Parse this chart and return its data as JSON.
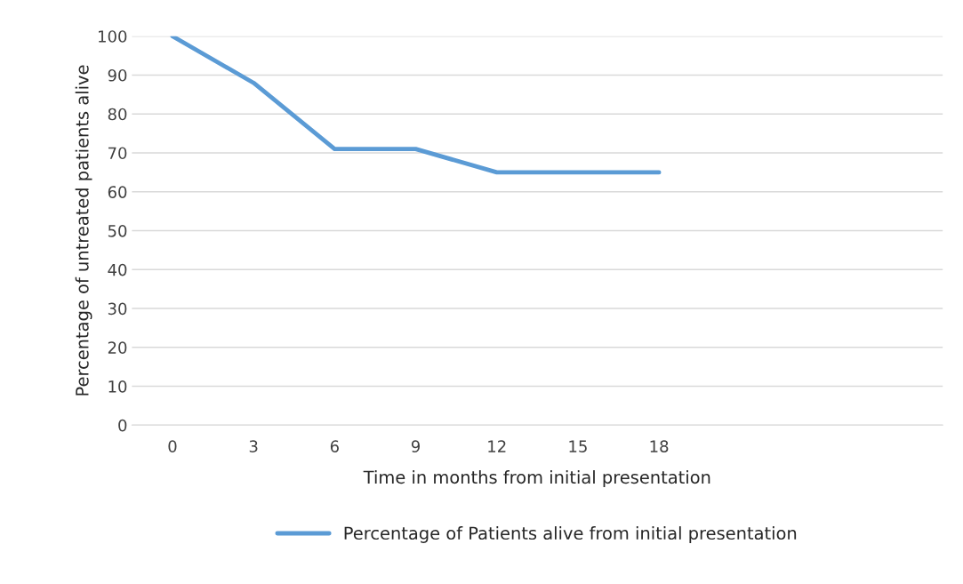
{
  "chart_data": {
    "type": "line",
    "xlabel": "Time in months from initial presentation",
    "ylabel": "Percentage of untreated patients alive",
    "categories": [
      "0",
      "3",
      "6",
      "9",
      "12",
      "15",
      "18",
      null,
      null,
      null
    ],
    "series": [
      {
        "name": "Percentage of Patients alive from initial presentation",
        "color": "#5b9bd5",
        "values": [
          100,
          88,
          71,
          71,
          65,
          65,
          65,
          null,
          null,
          null
        ]
      }
    ],
    "ylim": [
      0,
      100
    ],
    "yticks": [
      0,
      10,
      20,
      30,
      40,
      50,
      60,
      70,
      80,
      90,
      100
    ],
    "grid": "y",
    "legend": "bottom",
    "marker": "none",
    "line_style": "solid"
  }
}
